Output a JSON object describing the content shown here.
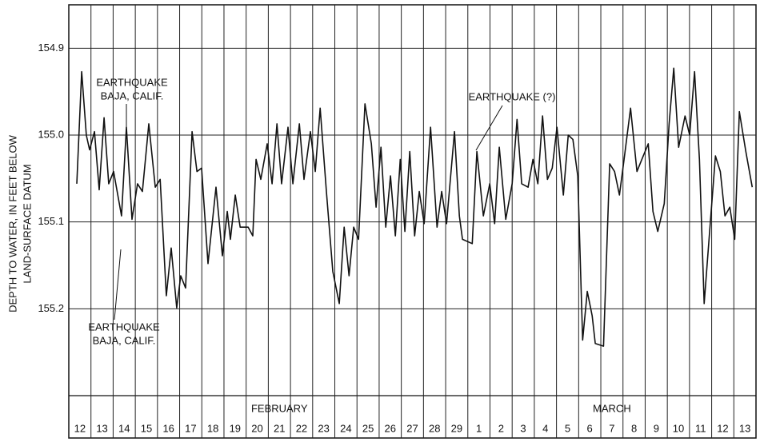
{
  "chart_data": {
    "type": "line",
    "y_label_lines": [
      "DEPTH TO WATER, IN FEET BELOW",
      "LAND-SURFACE DATUM"
    ],
    "categories": [
      "12",
      "13",
      "14",
      "15",
      "16",
      "17",
      "18",
      "19",
      "20",
      "21",
      "22",
      "23",
      "24",
      "25",
      "26",
      "27",
      "28",
      "29",
      "1",
      "2",
      "3",
      "4",
      "5",
      "6",
      "7",
      "8",
      "9",
      "10",
      "11",
      "12",
      "13"
    ],
    "month_labels": [
      "FEBRUARY",
      "MARCH"
    ],
    "annotations": [
      {
        "lines": [
          "EARTHQUAKE",
          "BAJA, CALIF."
        ]
      },
      {
        "lines": [
          "EARTHQUAKE",
          "BAJA, CALIF."
        ]
      },
      {
        "lines": [
          "EARTHQUAKE (?)"
        ]
      }
    ],
    "xlim": [
      0,
      31
    ],
    "ylim": [
      155.3,
      154.85
    ],
    "yticks": [
      154.9,
      {
        "value": 155.0,
        "label": "155.0"
      },
      155.1,
      155.2
    ],
    "grid": true,
    "color": "#111111",
    "x": [
      0.36,
      0.58,
      0.79,
      0.94,
      1.16,
      1.37,
      1.59,
      1.8,
      2.02,
      2.38,
      2.6,
      2.85,
      3.1,
      3.32,
      3.61,
      3.9,
      4.12,
      4.4,
      4.62,
      4.87,
      5.05,
      5.27,
      5.56,
      5.78,
      5.99,
      6.28,
      6.64,
      6.93,
      7.15,
      7.29,
      7.51,
      7.73,
      8.09,
      8.3,
      8.45,
      8.66,
      8.95,
      9.17,
      9.39,
      9.6,
      9.89,
      10.11,
      10.4,
      10.61,
      10.9,
      11.12,
      11.34,
      11.62,
      11.91,
      12.2,
      12.42,
      12.64,
      12.85,
      13.07,
      13.36,
      13.65,
      13.86,
      14.08,
      14.3,
      14.51,
      14.73,
      14.95,
      15.16,
      15.38,
      15.6,
      15.81,
      16.03,
      16.32,
      16.61,
      16.82,
      17.04,
      17.4,
      17.62,
      17.76,
      18.2,
      18.41,
      18.7,
      18.99,
      19.21,
      19.42,
      19.71,
      20.0,
      20.22,
      20.43,
      20.72,
      20.94,
      21.16,
      21.37,
      21.59,
      21.81,
      22.02,
      22.31,
      22.53,
      22.74,
      22.96,
      23.18,
      23.39,
      23.61,
      23.75,
      24.12,
      24.4,
      24.62,
      24.84,
      25.05,
      25.34,
      25.63,
      25.85,
      26.14,
      26.35,
      26.57,
      26.86,
      27.08,
      27.29,
      27.51,
      27.8,
      28.01,
      28.23,
      28.45,
      28.66,
      28.95,
      29.17,
      29.39,
      29.6,
      29.82,
      30.04,
      30.25,
      30.54,
      30.83
    ],
    "values": [
      155.056,
      154.927,
      155.0,
      155.017,
      154.996,
      155.063,
      154.98,
      155.056,
      155.042,
      155.093,
      154.991,
      155.097,
      155.056,
      155.065,
      154.987,
      155.06,
      155.051,
      155.185,
      155.13,
      155.199,
      155.162,
      155.176,
      154.996,
      155.042,
      155.038,
      155.148,
      155.06,
      155.139,
      155.088,
      155.12,
      155.069,
      155.106,
      155.106,
      155.116,
      155.028,
      155.051,
      155.01,
      155.056,
      154.987,
      155.056,
      154.991,
      155.056,
      154.987,
      155.051,
      154.996,
      155.042,
      154.969,
      155.065,
      155.157,
      155.194,
      155.106,
      155.162,
      155.106,
      155.12,
      154.964,
      155.01,
      155.083,
      155.014,
      155.106,
      155.047,
      155.116,
      155.028,
      155.111,
      155.019,
      155.116,
      155.065,
      155.102,
      154.991,
      155.106,
      155.065,
      155.102,
      154.996,
      155.093,
      155.12,
      155.125,
      155.019,
      155.093,
      155.056,
      155.102,
      155.014,
      155.097,
      155.056,
      154.982,
      155.056,
      155.06,
      155.028,
      155.056,
      154.978,
      155.051,
      155.038,
      154.991,
      155.069,
      155.0,
      155.005,
      155.047,
      155.236,
      155.18,
      155.208,
      155.24,
      155.243,
      155.033,
      155.042,
      155.069,
      155.028,
      154.969,
      155.042,
      155.028,
      155.01,
      155.088,
      155.111,
      155.079,
      154.987,
      154.923,
      155.014,
      154.978,
      155.0,
      154.927,
      155.028,
      155.194,
      155.097,
      155.024,
      155.042,
      155.093,
      155.083,
      155.12,
      154.973,
      155.019,
      155.06
    ]
  }
}
